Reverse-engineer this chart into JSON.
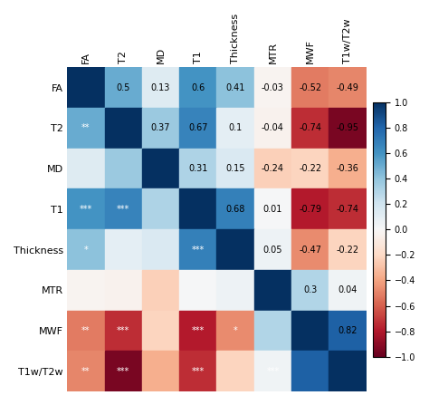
{
  "labels": [
    "FA",
    "T2",
    "MD",
    "T1",
    "Thickness",
    "MTR",
    "MWF",
    "T1w/T2w"
  ],
  "matrix": [
    [
      1.0,
      0.5,
      0.13,
      0.6,
      0.41,
      -0.03,
      -0.52,
      -0.49
    ],
    [
      0.5,
      1.0,
      0.37,
      0.67,
      0.1,
      -0.04,
      -0.74,
      -0.95
    ],
    [
      0.13,
      0.37,
      1.0,
      0.31,
      0.15,
      -0.24,
      -0.22,
      -0.36
    ],
    [
      0.6,
      0.67,
      0.31,
      1.0,
      0.68,
      0.01,
      -0.79,
      -0.74
    ],
    [
      0.41,
      0.1,
      0.15,
      0.68,
      1.0,
      0.05,
      -0.47,
      -0.22
    ],
    [
      -0.03,
      -0.04,
      -0.24,
      0.01,
      0.05,
      1.0,
      0.3,
      0.04
    ],
    [
      -0.52,
      -0.74,
      -0.22,
      -0.79,
      -0.47,
      0.3,
      1.0,
      0.82
    ],
    [
      -0.49,
      -0.95,
      -0.36,
      -0.74,
      -0.22,
      0.04,
      0.82,
      1.0
    ]
  ],
  "display_text": [
    [
      "",
      "0.5",
      "0.13",
      "0.6",
      "0.41",
      "-0.03",
      "-0.52",
      "-0.49"
    ],
    [
      "**",
      "",
      "0.37",
      "0.67",
      "0.1",
      "-0.04",
      "-0.74",
      "-0.95"
    ],
    [
      "",
      "",
      "",
      "0.31",
      "0.15",
      "-0.24",
      "-0.22",
      "-0.36"
    ],
    [
      "***",
      "***",
      "",
      "",
      "0.68",
      "0.01",
      "-0.79",
      "-0.74"
    ],
    [
      "*",
      "",
      "",
      "***",
      "",
      "0.05",
      "-0.47",
      "-0.22"
    ],
    [
      "",
      "",
      "",
      "",
      "",
      "",
      "0.3",
      "0.04"
    ],
    [
      "**",
      "***",
      "",
      "***",
      "*",
      "",
      "",
      "0.82"
    ],
    [
      "**",
      "***",
      "",
      "***",
      "",
      "***",
      "",
      ""
    ]
  ],
  "text_is_white": [
    [
      true,
      false,
      false,
      false,
      false,
      false,
      false,
      false
    ],
    [
      true,
      true,
      false,
      false,
      false,
      false,
      false,
      false
    ],
    [
      false,
      false,
      true,
      false,
      false,
      false,
      false,
      false
    ],
    [
      true,
      true,
      false,
      true,
      false,
      false,
      false,
      false
    ],
    [
      true,
      false,
      false,
      true,
      true,
      false,
      false,
      false
    ],
    [
      false,
      false,
      false,
      false,
      false,
      true,
      false,
      false
    ],
    [
      true,
      true,
      false,
      true,
      true,
      false,
      true,
      false
    ],
    [
      true,
      true,
      false,
      true,
      false,
      true,
      false,
      true
    ]
  ],
  "vmin": -1.0,
  "vmax": 1.0,
  "colormap": "RdBu",
  "fig_width": 4.74,
  "fig_height": 4.47,
  "dpi": 100,
  "colorbar_ticks": [
    -1,
    -0.8,
    -0.6,
    -0.4,
    -0.2,
    0,
    0.2,
    0.4,
    0.6,
    0.8,
    1.0
  ],
  "label_fontsize": 8,
  "cell_fontsize": 7
}
